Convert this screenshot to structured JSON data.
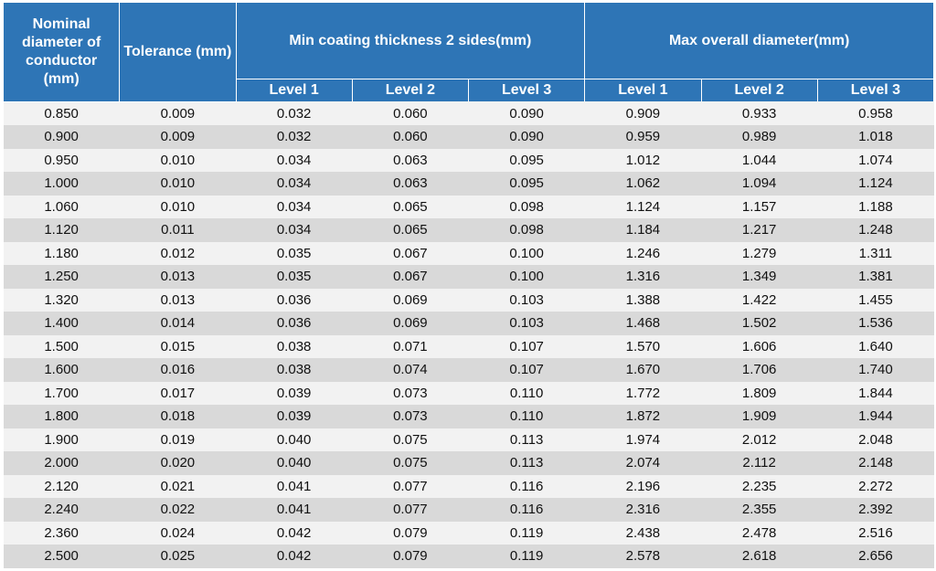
{
  "header": {
    "nominal": "Nominal diameter of conductor (mm)",
    "tolerance": "Tolerance (mm)",
    "min_coating": {
      "title": "Min coating thickness 2 sides(mm)",
      "levels": [
        "Level 1",
        "Level 2",
        "Level 3"
      ]
    },
    "max_overall": {
      "title": "Max overall diameter(mm)",
      "levels": [
        "Level 1",
        "Level 2",
        "Level 3"
      ]
    }
  },
  "rows": [
    [
      "0.850",
      "0.009",
      "0.032",
      "0.060",
      "0.090",
      "0.909",
      "0.933",
      "0.958"
    ],
    [
      "0.900",
      "0.009",
      "0.032",
      "0.060",
      "0.090",
      "0.959",
      "0.989",
      "1.018"
    ],
    [
      "0.950",
      "0.010",
      "0.034",
      "0.063",
      "0.095",
      "1.012",
      "1.044",
      "1.074"
    ],
    [
      "1.000",
      "0.010",
      "0.034",
      "0.063",
      "0.095",
      "1.062",
      "1.094",
      "1.124"
    ],
    [
      "1.060",
      "0.010",
      "0.034",
      "0.065",
      "0.098",
      "1.124",
      "1.157",
      "1.188"
    ],
    [
      "1.120",
      "0.011",
      "0.034",
      "0.065",
      "0.098",
      "1.184",
      "1.217",
      "1.248"
    ],
    [
      "1.180",
      "0.012",
      "0.035",
      "0.067",
      "0.100",
      "1.246",
      "1.279",
      "1.311"
    ],
    [
      "1.250",
      "0.013",
      "0.035",
      "0.067",
      "0.100",
      "1.316",
      "1.349",
      "1.381"
    ],
    [
      "1.320",
      "0.013",
      "0.036",
      "0.069",
      "0.103",
      "1.388",
      "1.422",
      "1.455"
    ],
    [
      "1.400",
      "0.014",
      "0.036",
      "0.069",
      "0.103",
      "1.468",
      "1.502",
      "1.536"
    ],
    [
      "1.500",
      "0.015",
      "0.038",
      "0.071",
      "0.107",
      "1.570",
      "1.606",
      "1.640"
    ],
    [
      "1.600",
      "0.016",
      "0.038",
      "0.074",
      "0.107",
      "1.670",
      "1.706",
      "1.740"
    ],
    [
      "1.700",
      "0.017",
      "0.039",
      "0.073",
      "0.110",
      "1.772",
      "1.809",
      "1.844"
    ],
    [
      "1.800",
      "0.018",
      "0.039",
      "0.073",
      "0.110",
      "1.872",
      "1.909",
      "1.944"
    ],
    [
      "1.900",
      "0.019",
      "0.040",
      "0.075",
      "0.113",
      "1.974",
      "2.012",
      "2.048"
    ],
    [
      "2.000",
      "0.020",
      "0.040",
      "0.075",
      "0.113",
      "2.074",
      "2.112",
      "2.148"
    ],
    [
      "2.120",
      "0.021",
      "0.041",
      "0.077",
      "0.116",
      "2.196",
      "2.235",
      "2.272"
    ],
    [
      "2.240",
      "0.022",
      "0.041",
      "0.077",
      "0.116",
      "2.316",
      "2.355",
      "2.392"
    ],
    [
      "2.360",
      "0.024",
      "0.042",
      "0.079",
      "0.119",
      "2.438",
      "2.478",
      "2.516"
    ],
    [
      "2.500",
      "0.025",
      "0.042",
      "0.079",
      "0.119",
      "2.578",
      "2.618",
      "2.656"
    ]
  ]
}
